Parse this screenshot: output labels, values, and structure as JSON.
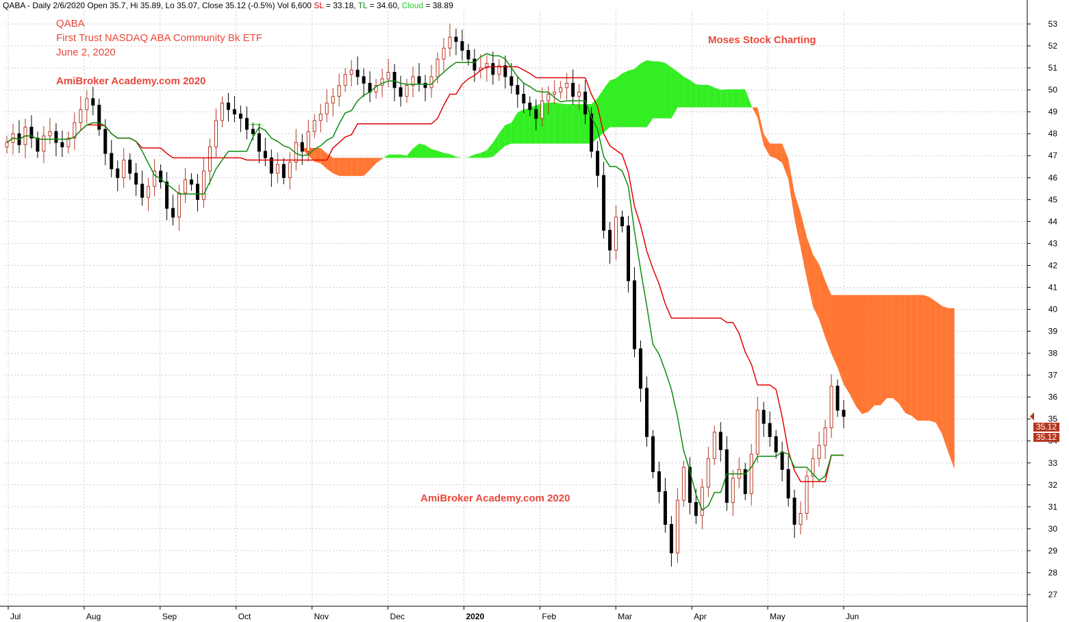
{
  "header": {
    "symbol": "QABA - Daily 2/6/2020 Open 35.7, Hi 35.89, Lo 35.07, Close 35.12 (-0.5%) Vol 6,600",
    "sl_label": "SL",
    "sl_value": "= 33.18,",
    "tl_label": "TL",
    "tl_value": "= 34.60,",
    "cloud_label": "Cloud",
    "cloud_value": "= 38.89"
  },
  "annotations": {
    "ticker": "QABA",
    "fund_name": "First Trust NASDAQ ABA Community Bk ETF",
    "date": "June 2, 2020",
    "watermark_top": "AmiBroker Academy.com  2020",
    "watermark_bottom": "AmiBroker Academy.com  2020",
    "brand": "Moses Stock Charting"
  },
  "price_badges": [
    "35.12",
    "35.12"
  ],
  "colors": {
    "up_candle": "#b5361f",
    "down_candle": "#000000",
    "standard_line": "#e00000",
    "turning_line": "#0a8a0a",
    "cloud_bull": "#33ee22",
    "cloud_bear": "#ff7733",
    "grid": "#c8c8c8",
    "text_accent": "#e8473a"
  },
  "chart_data": {
    "type": "candlestick-ichimoku",
    "title": "",
    "ylim": [
      27,
      53
    ],
    "y_ticks": [
      27,
      28,
      29,
      30,
      31,
      32,
      33,
      34,
      35,
      36,
      37,
      38,
      39,
      40,
      41,
      42,
      43,
      44,
      45,
      46,
      47,
      48,
      49,
      50,
      51,
      52,
      53
    ],
    "x_labels": [
      "Jul",
      "Aug",
      "Sep",
      "Oct",
      "Nov",
      "Dec",
      "2020",
      "Feb",
      "Mar",
      "Apr",
      "May",
      "Jun"
    ],
    "grid": true,
    "last_close": 35.12,
    "candle_closes": [
      47.6,
      48.0,
      47.5,
      48.3,
      47.8,
      47.2,
      47.9,
      48.1,
      47.6,
      47.4,
      47.8,
      48.5,
      49.1,
      49.6,
      49.3,
      48.2,
      47.1,
      46.4,
      46.0,
      46.8,
      46.2,
      45.7,
      45.1,
      45.6,
      46.3,
      45.8,
      44.6,
      44.2,
      45.3,
      45.9,
      45.7,
      45.0,
      46.3,
      47.4,
      48.6,
      49.4,
      49.1,
      48.9,
      48.7,
      48.2,
      48.0,
      47.2,
      46.9,
      46.2,
      46.6,
      46.0,
      46.7,
      47.6,
      47.2,
      48.1,
      48.6,
      48.9,
      49.4,
      49.7,
      50.2,
      50.7,
      50.9,
      50.6,
      50.3,
      49.9,
      50.2,
      50.5,
      50.8,
      50.1,
      49.7,
      50.2,
      50.6,
      50.3,
      50.1,
      50.6,
      51.4,
      51.9,
      52.4,
      52.2,
      51.8,
      51.4,
      50.9,
      51.0,
      51.2,
      50.7,
      51.1,
      50.6,
      50.2,
      49.8,
      49.4,
      49.1,
      48.7,
      49.5,
      49.8,
      49.9,
      50.1,
      50.3,
      49.7,
      49.9,
      48.9,
      47.2,
      46.1,
      43.6,
      42.7,
      44.2,
      43.8,
      41.3,
      38.2,
      36.4,
      34.2,
      32.6,
      31.7,
      30.2,
      28.9,
      31.3,
      32.8,
      31.2,
      30.6,
      31.9,
      33.2,
      34.4,
      33.6,
      31.2,
      32.3,
      32.7,
      31.6,
      33.4,
      35.4,
      34.8,
      34.2,
      33.5,
      32.7,
      31.4,
      30.2,
      30.7,
      32.4,
      33.2,
      33.8,
      34.6,
      36.5,
      35.4,
      35.12
    ],
    "tenkan_line": [
      47.2,
      47.3,
      47.6,
      47.9,
      47.8,
      47.5,
      47.4,
      47.6,
      47.9,
      48.3,
      47.9,
      47.3,
      46.4,
      46.0,
      45.8,
      45.7,
      45.5,
      45.6,
      46.4,
      47.4,
      48.2,
      48.5,
      48.1,
      47.3,
      46.9,
      46.7,
      47.0,
      47.1,
      47.4,
      47.7,
      48.6,
      49.3,
      49.8,
      49.9,
      50.1,
      50.2,
      50.0,
      49.9,
      50.1,
      50.4,
      51.2,
      51.6,
      52.0,
      51.9,
      51.6,
      51.3,
      51.0,
      50.9,
      50.6,
      50.3,
      50.0,
      49.7,
      49.9,
      50.0,
      49.9,
      48.5,
      46.2,
      43.4,
      40.7,
      37.8,
      35.4,
      33.6,
      31.6,
      30.6,
      30.6,
      32.6,
      32.9,
      33.0,
      32.6,
      32.1,
      34.6,
      34.8,
      32.7,
      31.5,
      31.2,
      32.8,
      34.6
    ]
  }
}
